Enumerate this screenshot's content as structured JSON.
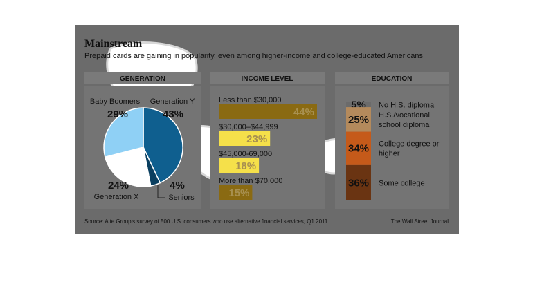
{
  "title": "Mainstream",
  "subtitle": "Prepaid cards are gaining in popularity, even among higher-income and college-educated Americans",
  "source": "Source: Aite Group's survey of 500 U.S. consumers who use alternative financial services, Q1 2011",
  "credit": "The Wall Street Journal",
  "colors": {
    "overlay": "#6b6b6b",
    "header_band": "#7a7a7a",
    "panel": "#747474",
    "blue_light": "#8fd0f5",
    "blue_mid": "#1f95d6",
    "blue_dark": "#0f5f8f",
    "blue_darker": "#0a3f60",
    "gold": "#8a6a12",
    "yellow": "#f5e04a",
    "tan": "#b48a5c",
    "orange": "#c55a1a",
    "orange_dark": "#6a3412"
  },
  "chart_data": [
    {
      "type": "pie",
      "title": "GENERATION",
      "categories": [
        "Generation Y",
        "Seniors",
        "Generation X",
        "Baby Boomers"
      ],
      "values": [
        43,
        4,
        24,
        29
      ],
      "value_labels": [
        "43%",
        "4%",
        "24%",
        "29%"
      ]
    },
    {
      "type": "bar",
      "title": "INCOME LEVEL",
      "categories": [
        "Less than $30,000",
        "$30,000–$44,999",
        "$45,000-69,000",
        "More than $70,000"
      ],
      "values": [
        44,
        23,
        18,
        15
      ],
      "value_labels": [
        "44%",
        "23%",
        "18%",
        "15%"
      ],
      "xlim": [
        0,
        44
      ]
    },
    {
      "type": "bar",
      "title": "EDUCATION",
      "categories": [
        "No H.S. diploma",
        "H.S./vocational school diploma",
        "College degree or higher",
        "Some college"
      ],
      "category_lines": [
        [
          "No H.S. diploma"
        ],
        [
          "H.S./vocational",
          "school diploma"
        ],
        [
          "College degree or",
          "higher"
        ],
        [
          "Some college"
        ]
      ],
      "values": [
        5,
        25,
        34,
        36
      ],
      "value_labels": [
        "5%",
        "25%",
        "34%",
        "36%"
      ]
    }
  ]
}
